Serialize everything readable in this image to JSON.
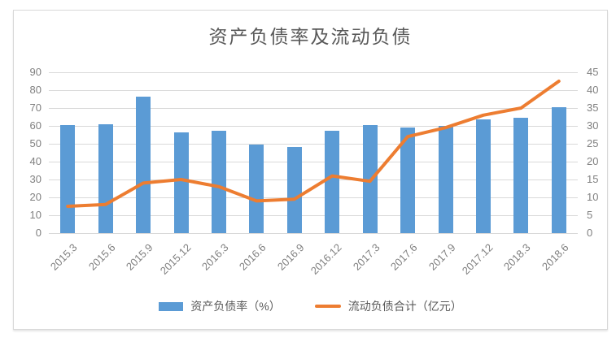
{
  "title": "资产负债率及流动负债",
  "legend": {
    "items": [
      {
        "label": "资产负债率（%）",
        "swatch": "bar-swatch",
        "color": "#5B9BD5"
      },
      {
        "label": "流动负债合计（亿元）",
        "swatch": "line-swatch",
        "color": "#ED7D31"
      }
    ]
  },
  "colors": {
    "bar": "#5B9BD5",
    "line": "#ED7D31",
    "grid": "#d9d9d9",
    "axis_text": "#808080",
    "title_text": "#595959",
    "panel_border": "#d8d8d8"
  },
  "chart_data": {
    "type": "bar",
    "subtype": "combo-bar-line",
    "title": "资产负债率及流动负债",
    "categories": [
      "2015.3",
      "2015.6",
      "2015.9",
      "2015.12",
      "2016.3",
      "2016.6",
      "2016.9",
      "2016.12",
      "2017.3",
      "2017.6",
      "2017.9",
      "2017.12",
      "2018.3",
      "2018.6"
    ],
    "series": [
      {
        "name": "资产负债率（%）",
        "type": "bar",
        "axis": "left",
        "color": "#5B9BD5",
        "values": [
          60.5,
          61,
          76.5,
          56.5,
          57.5,
          49.5,
          48,
          57.5,
          60.5,
          59,
          60,
          63.5,
          64.5,
          70.5
        ]
      },
      {
        "name": "流动负债合计（亿元）",
        "type": "line",
        "axis": "right",
        "color": "#ED7D31",
        "values": [
          7.5,
          8,
          14,
          15,
          13,
          9,
          9.5,
          16,
          14.5,
          27,
          29.5,
          33,
          35,
          42.5
        ]
      }
    ],
    "left_axis": {
      "min": 0,
      "max": 90,
      "step": 10
    },
    "right_axis": {
      "min": 0,
      "max": 45,
      "step": 5
    },
    "grid": true,
    "legend_position": "bottom"
  }
}
